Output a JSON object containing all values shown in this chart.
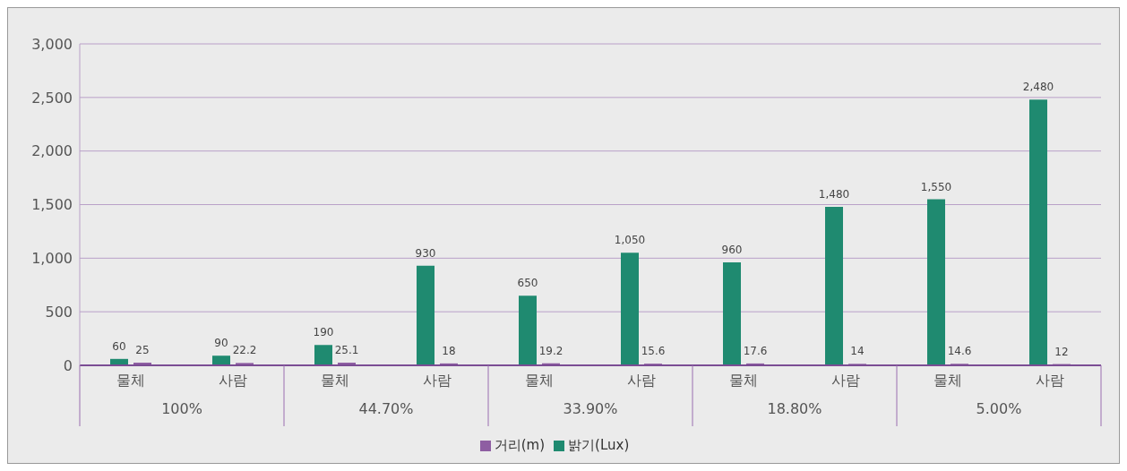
{
  "chart_data": {
    "type": "bar",
    "categories": [
      "물체",
      "사람",
      "물체",
      "사람",
      "물체",
      "사람",
      "물체",
      "사람",
      "물체",
      "사람"
    ],
    "annotations": [
      "100%",
      "44.70%",
      "33.90%",
      "18.80%",
      "5.00%"
    ],
    "series": [
      {
        "name": "밝기(Lux)",
        "color": "#1f8a70",
        "values": [
          60,
          90,
          190,
          930,
          650,
          1050,
          960,
          1480,
          1550,
          2480
        ],
        "value_labels": [
          "60",
          "90",
          "190",
          "930",
          "650",
          "1,050",
          "960",
          "1,480",
          "1,550",
          "2,480"
        ]
      },
      {
        "name": "거리(m)",
        "color": "#8e5ea2",
        "values": [
          25,
          22.2,
          25.1,
          18,
          19.2,
          15.6,
          17.6,
          14,
          14.6,
          12
        ],
        "value_labels": [
          "25",
          "22.2",
          "25.1",
          "18",
          "19.2",
          "15.6",
          "17.6",
          "14",
          "14.6",
          "12"
        ]
      }
    ],
    "ylim": [
      0,
      3000
    ],
    "yticks": [
      0,
      {
        "value": 500,
        "label": "500"
      },
      {
        "value": 1000,
        "label": "1,000"
      },
      {
        "value": 1500,
        "label": "1,500"
      },
      {
        "value": 2000,
        "label": "2,000"
      },
      {
        "value": 2500,
        "label": "2,500"
      },
      {
        "value": 3000,
        "label": "3,000"
      }
    ],
    "grid": "y",
    "legend": "bottom"
  }
}
